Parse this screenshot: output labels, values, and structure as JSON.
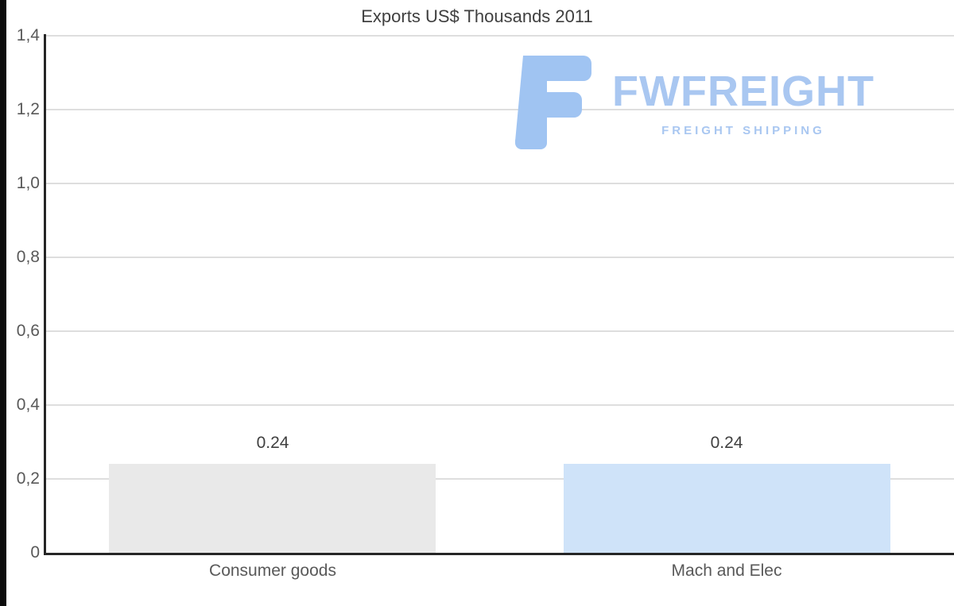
{
  "chart_data": {
    "type": "bar",
    "title": "Exports US$ Thousands 2011",
    "categories": [
      "Consumer goods",
      "Mach and Elec"
    ],
    "values": [
      0.24,
      0.24
    ],
    "bar_value_labels": [
      "0.24",
      "0.24"
    ],
    "bar_colors": [
      "#e9e9e9",
      "#cfe3f9"
    ],
    "xlabel": "",
    "ylabel": "",
    "ylim": [
      0,
      1.4
    ],
    "yticks": [
      0,
      0.2,
      0.4,
      0.6,
      0.8,
      1.0,
      1.2,
      1.4
    ],
    "ytick_labels": [
      "0",
      "0,2",
      "0,4",
      "0,6",
      "0,8",
      "1,0",
      "1,2",
      "1,4"
    ],
    "grid": true,
    "legend": "none"
  },
  "watermark": {
    "brand": "FWFREIGHT",
    "tagline": "FREIGHT SHIPPING",
    "color": "#a9c7f1"
  },
  "colors": {
    "title_text": "#3f3f3f",
    "tick_text": "#595959",
    "gridline": "#dedede",
    "axis_line": "#262626",
    "bar_consumer_goods": "#e9e9e9",
    "bar_mach_and_elec": "#cfe3f9",
    "left_strip": "#0b0b0b",
    "background": "#ffffff"
  }
}
